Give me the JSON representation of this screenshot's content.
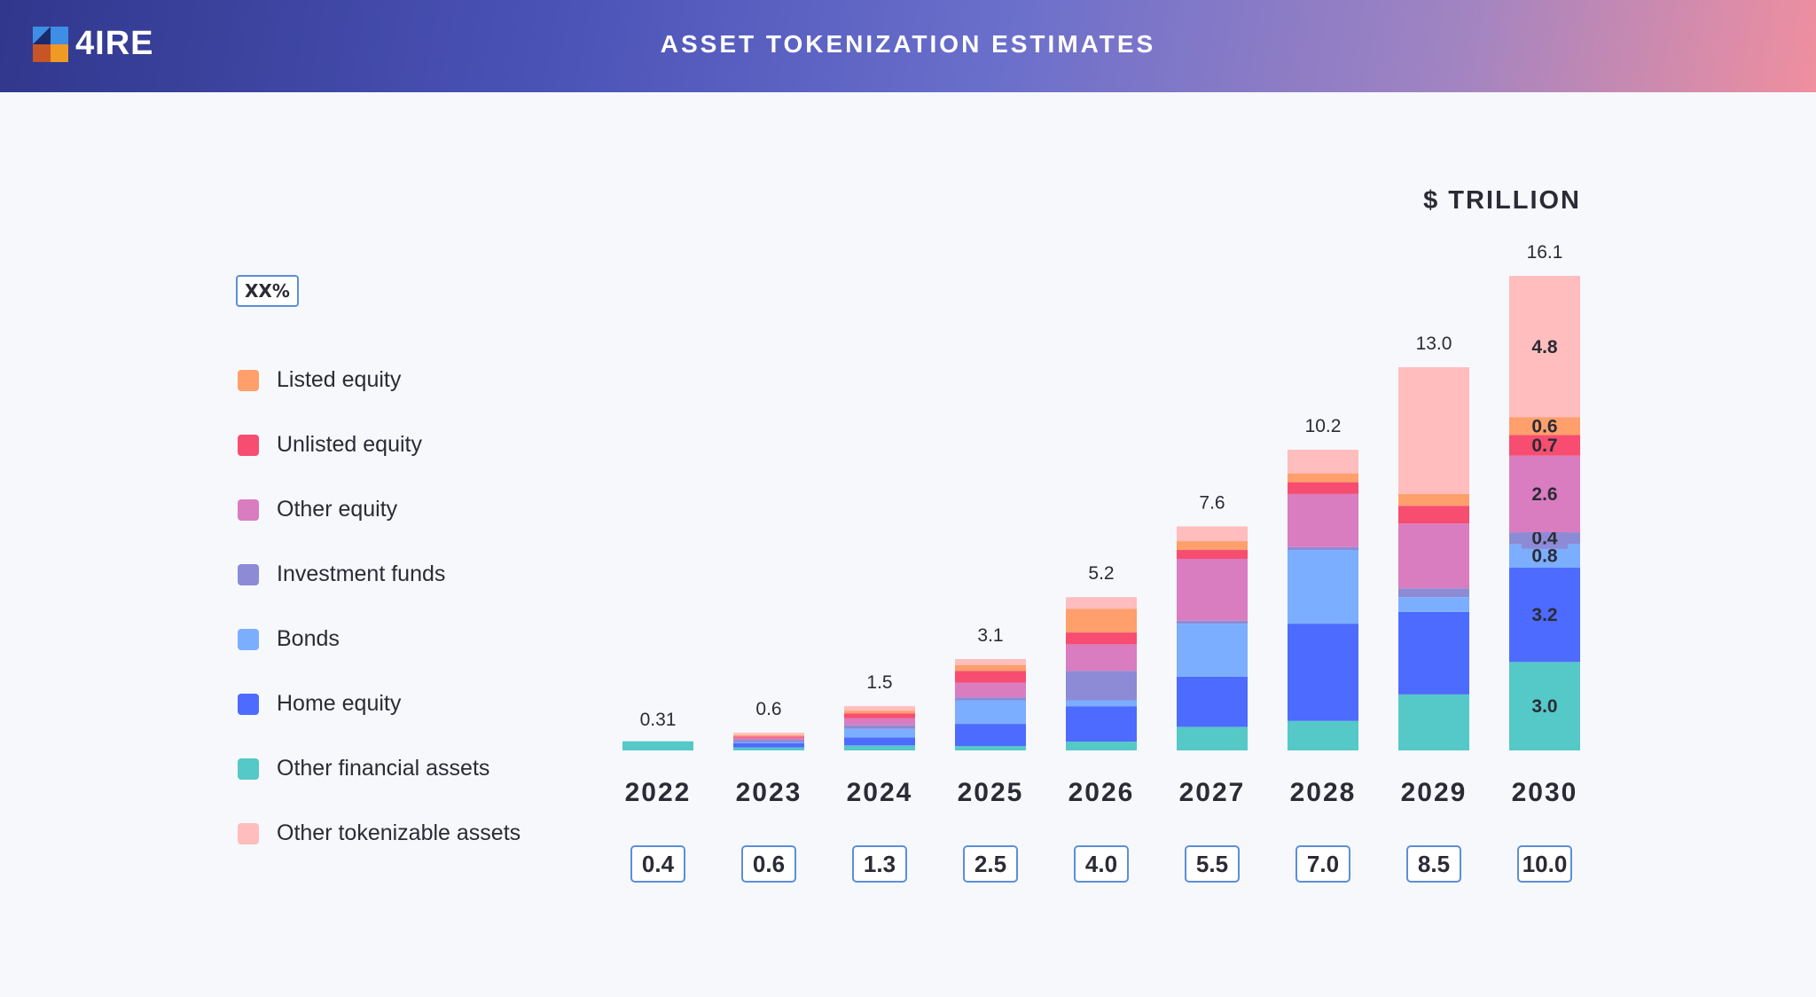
{
  "header": {
    "logo_text": "4IRE",
    "title": "ASSET TOKENIZATION ESTIMATES"
  },
  "chart_data": {
    "type": "bar",
    "stacked": true,
    "title": "ASSET TOKENIZATION ESTIMATES",
    "ylabel": "$ TRILLION",
    "categories": [
      "2022",
      "2023",
      "2024",
      "2025",
      "2026",
      "2027",
      "2028",
      "2029",
      "2030"
    ],
    "totals": [
      "0.31",
      "0.6",
      "1.5",
      "3.1",
      "5.2",
      "7.6",
      "10.2",
      "13.0",
      "16.1"
    ],
    "percent_badge_label": "XX%",
    "percent_values": [
      "0.4",
      "0.6",
      "1.3",
      "2.5",
      "4.0",
      "5.5",
      "7.0",
      "8.5",
      "10.0"
    ],
    "ylim": [
      0,
      16.1
    ],
    "grid": false,
    "legend_placement": "left",
    "series": [
      {
        "name": "Other financial assets",
        "color": "#55c8c8",
        "values": [
          0.31,
          0.1,
          0.17,
          0.15,
          0.3,
          0.8,
          1.0,
          1.9,
          3.0
        ]
      },
      {
        "name": "Home equity",
        "color": "#4d6bfe",
        "values": [
          0,
          0.15,
          0.27,
          0.75,
          1.2,
          1.7,
          3.3,
          2.8,
          3.2
        ]
      },
      {
        "name": "Bonds",
        "color": "#7baeff",
        "values": [
          0,
          0.02,
          0.29,
          0.8,
          0.2,
          1.8,
          2.5,
          0.5,
          0.8
        ]
      },
      {
        "name": "Investment funds",
        "color": "#8d8bd6",
        "values": [
          0,
          0.09,
          0.12,
          0.1,
          1.0,
          0.1,
          0.1,
          0.3,
          0.4
        ]
      },
      {
        "name": "Other equity",
        "color": "#d97cc0",
        "values": [
          0,
          0.07,
          0.24,
          0.5,
          0.9,
          2.1,
          1.8,
          2.2,
          2.6
        ]
      },
      {
        "name": "Unlisted equity",
        "color": "#f64d70",
        "values": [
          0,
          0.04,
          0.16,
          0.4,
          0.4,
          0.3,
          0.4,
          0.6,
          0.7
        ]
      },
      {
        "name": "Listed equity",
        "color": "#ff9f6b",
        "values": [
          0,
          0.05,
          0.1,
          0.2,
          0.8,
          0.3,
          0.3,
          0.4,
          0.6
        ]
      },
      {
        "name": "Other tokenizable assets",
        "color": "#ffbdbd",
        "values": [
          0,
          0.08,
          0.15,
          0.2,
          0.4,
          0.5,
          0.8,
          4.3,
          4.8
        ]
      }
    ],
    "segment_labels_2030": [
      "3.0",
      "3.2",
      "0.8",
      "0.4",
      "2.6",
      "0.7",
      "0.6",
      "4.8"
    ],
    "legend_order": [
      "Listed equity",
      "Unlisted equity",
      "Other equity",
      "Investment funds",
      "Bonds",
      "Home equity",
      "Other financial assets",
      "Other tokenizable assets"
    ]
  }
}
